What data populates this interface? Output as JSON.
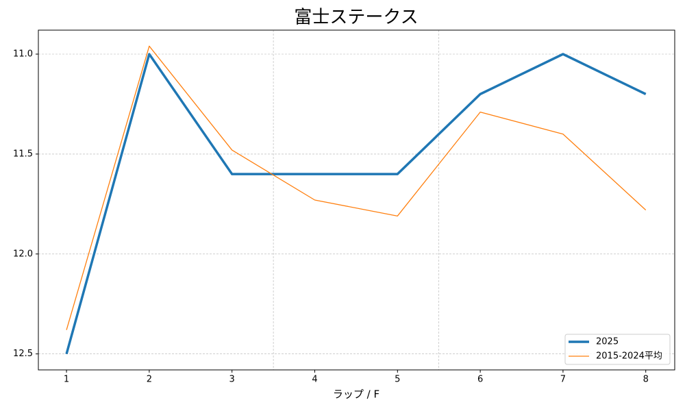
{
  "chart_data": {
    "type": "line",
    "title": "富士ステークス",
    "x_label": "ラップ / F",
    "x": [
      1,
      2,
      3,
      4,
      5,
      6,
      7,
      8
    ],
    "xlim": [
      0.66,
      8.35
    ],
    "xticks": [
      1,
      2,
      3,
      4,
      5,
      6,
      7,
      8
    ],
    "ylim": [
      12.58,
      10.88
    ],
    "yticks": [
      {
        "value": 11,
        "label": "11.0"
      },
      11.5,
      {
        "value": 12,
        "label": "12.0"
      },
      12.5
    ],
    "y_inverted": true,
    "grid": true,
    "vlines": [
      3.5,
      5.5
    ],
    "legend": "lower right",
    "series": [
      {
        "name": "2025",
        "color": "#1f77b4",
        "width": 3.5,
        "values": [
          12.5,
          11.0,
          11.6,
          11.6,
          11.6,
          11.2,
          11.0,
          11.2
        ]
      },
      {
        "name": "2015-2024平均",
        "color": "#ff7f0e",
        "width": 1.3,
        "values": [
          12.38,
          10.96,
          11.48,
          11.73,
          11.81,
          11.29,
          11.4,
          11.78
        ]
      }
    ]
  }
}
